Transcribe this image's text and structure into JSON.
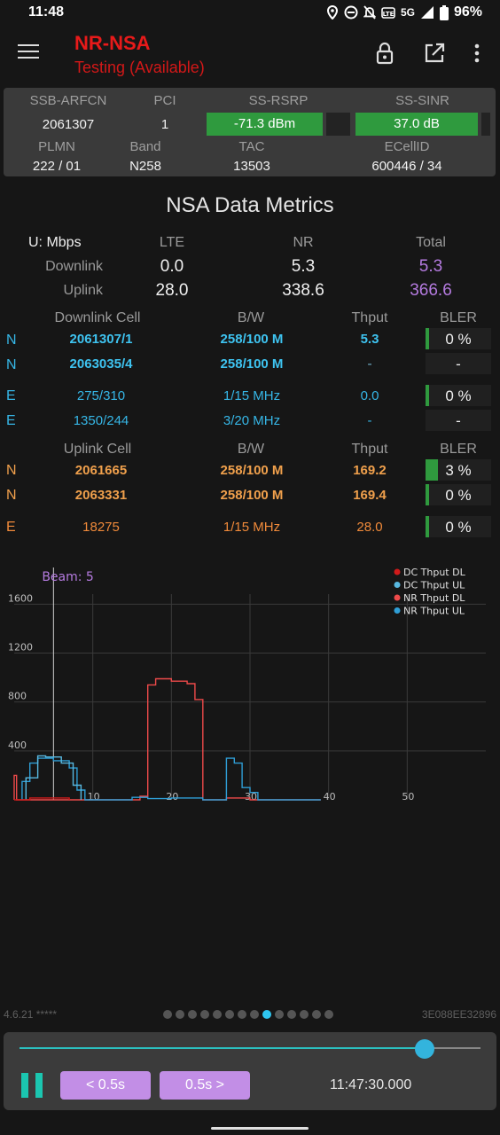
{
  "status_bar": {
    "time": "11:48",
    "network_type": "5G",
    "battery": "96%"
  },
  "app_bar": {
    "title": "NR-NSA",
    "subtitle": "Testing (Available)"
  },
  "cell_info": {
    "headers_top": [
      "SSB-ARFCN",
      "PCI",
      "SS-RSRP",
      "SS-SINR"
    ],
    "ssb_arfcn": "2061307",
    "pci": "1",
    "ss_rsrp": {
      "label": "-71.3 dBm",
      "level": 0.81
    },
    "ss_sinr": {
      "label": "37.0 dB",
      "level": 0.91
    },
    "headers_bottom": [
      "PLMN",
      "Band",
      "TAC",
      "ECellID"
    ],
    "plmn": "222 / 01",
    "band": "N258",
    "tac": "13503",
    "ecellid": "600446 / 34"
  },
  "metrics": {
    "title": "NSA Data Metrics",
    "unit_label": "U: Mbps",
    "col_headers": [
      "LTE",
      "NR",
      "Total"
    ],
    "rows": [
      {
        "label": "Downlink",
        "lte": "0.0",
        "nr": "5.3",
        "total": "5.3"
      },
      {
        "label": "Uplink",
        "lte": "28.0",
        "nr": "338.6",
        "total": "366.6"
      }
    ]
  },
  "downlink_table": {
    "headers": [
      "Downlink Cell",
      "B/W",
      "Thput",
      "BLER"
    ],
    "rows": [
      {
        "tech": "N",
        "cell": "2061307/1",
        "bw": "258/100 M",
        "thput": "5.3",
        "bler": "0 %",
        "bar": true
      },
      {
        "tech": "N",
        "cell": "2063035/4",
        "bw": "258/100 M",
        "thput": "-",
        "bler": "-",
        "bar": false
      },
      {
        "tech": "E",
        "cell": "275/310",
        "bw": "1/15 MHz",
        "thput": "0.0",
        "bler": "0 %",
        "bar": true
      },
      {
        "tech": "E",
        "cell": "1350/244",
        "bw": "3/20 MHz",
        "thput": "-",
        "bler": "-",
        "bar": false
      }
    ]
  },
  "uplink_table": {
    "headers": [
      "Uplink Cell",
      "B/W",
      "Thput",
      "BLER"
    ],
    "rows": [
      {
        "tech": "N",
        "cell": "2061665",
        "bw": "258/100 M",
        "thput": "169.2",
        "bler": "3 %",
        "bar": true
      },
      {
        "tech": "N",
        "cell": "2063331",
        "bw": "258/100 M",
        "thput": "169.4",
        "bler": "0 %",
        "bar": true
      },
      {
        "tech": "E",
        "cell": "18275",
        "bw": "1/15 MHz",
        "thput": "28.0",
        "bler": "0 %",
        "bar": true
      }
    ]
  },
  "chart_data": {
    "type": "line",
    "beam_label": "Beam: 5",
    "beam_x": 5,
    "xlim": [
      0,
      60
    ],
    "ylim": [
      0,
      1900
    ],
    "x_ticks": [
      10,
      20,
      30,
      40,
      50
    ],
    "y_ticks": [
      400,
      800,
      1200,
      1600
    ],
    "legend": [
      "DC Thput DL",
      "DC Thput UL",
      "NR Thput DL",
      "NR Thput UL"
    ],
    "legend_colors": [
      "#d11a1a",
      "#58b8e0",
      "#ee4a4a",
      "#2f9ed6"
    ],
    "series": [
      {
        "name": "NR Thput DL",
        "color": "#ee4a4a",
        "points": [
          [
            0,
            0
          ],
          [
            0,
            200
          ],
          [
            0.3,
            200
          ],
          [
            0.3,
            0
          ],
          [
            2,
            0
          ],
          [
            2,
            0
          ],
          [
            16,
            0
          ],
          [
            16,
            30
          ],
          [
            17,
            30
          ],
          [
            17,
            940
          ],
          [
            18,
            940
          ],
          [
            18,
            990
          ],
          [
            20,
            990
          ],
          [
            20,
            970
          ],
          [
            22,
            970
          ],
          [
            22,
            950
          ],
          [
            23,
            950
          ],
          [
            23,
            820
          ],
          [
            24,
            820
          ],
          [
            24,
            0
          ],
          [
            27,
            0
          ],
          [
            27,
            15
          ],
          [
            30,
            15
          ],
          [
            30,
            0
          ],
          [
            39,
            0
          ]
        ]
      },
      {
        "name": "NR Thput UL",
        "color": "#2f9ed6",
        "points": [
          [
            1,
            0
          ],
          [
            1,
            150
          ],
          [
            2,
            150
          ],
          [
            2,
            300
          ],
          [
            3,
            300
          ],
          [
            3,
            340
          ],
          [
            5,
            340
          ],
          [
            5,
            320
          ],
          [
            7,
            320
          ],
          [
            7,
            260
          ],
          [
            8,
            260
          ],
          [
            8,
            80
          ],
          [
            9,
            80
          ],
          [
            9,
            0
          ],
          [
            15,
            0
          ],
          [
            15,
            20
          ],
          [
            17,
            20
          ],
          [
            17,
            10
          ],
          [
            20,
            10
          ],
          [
            20,
            15
          ],
          [
            24,
            15
          ],
          [
            24,
            0
          ],
          [
            27,
            0
          ],
          [
            27,
            340
          ],
          [
            28,
            340
          ],
          [
            28,
            300
          ],
          [
            29,
            300
          ],
          [
            29,
            100
          ],
          [
            30,
            100
          ],
          [
            30,
            60
          ],
          [
            31,
            60
          ],
          [
            31,
            0
          ],
          [
            39,
            0
          ]
        ]
      },
      {
        "name": "DC Thput UL",
        "color": "#58b8e0",
        "points": [
          [
            1.5,
            0
          ],
          [
            1.5,
            180
          ],
          [
            3,
            180
          ],
          [
            3,
            360
          ],
          [
            4,
            360
          ],
          [
            4,
            350
          ],
          [
            6,
            350
          ],
          [
            6,
            300
          ],
          [
            7.5,
            300
          ],
          [
            7.5,
            120
          ],
          [
            8.5,
            120
          ],
          [
            8.5,
            0
          ]
        ]
      },
      {
        "name": "DC Thput DL",
        "color": "#d11a1a",
        "points": [
          [
            0,
            0
          ],
          [
            0,
            0
          ],
          [
            2,
            0
          ],
          [
            2,
            15
          ],
          [
            7,
            15
          ],
          [
            7,
            0
          ]
        ]
      }
    ]
  },
  "footer": {
    "version": "4.6.21 *****",
    "device_id": "3E088EE32896",
    "page_count": 14,
    "active_page": 8
  },
  "controls": {
    "progress": 0.87,
    "prev_label": "< 0.5s",
    "next_label": "0.5s >",
    "timestamp": "11:47:30.000"
  }
}
